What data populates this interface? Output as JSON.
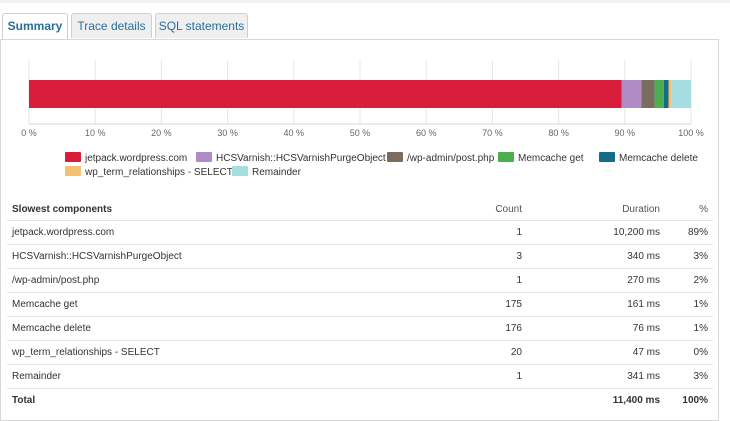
{
  "tabs": [
    {
      "label": "Summary",
      "active": true
    },
    {
      "label": "Trace details",
      "active": false
    },
    {
      "label": "SQL statements",
      "active": false
    }
  ],
  "chart_data": {
    "type": "bar",
    "orientation": "horizontal",
    "stacked": true,
    "xlim": [
      0,
      100
    ],
    "x_ticks": [
      "0 %",
      "10 %",
      "20 %",
      "30 %",
      "40 %",
      "50 %",
      "60 %",
      "70 %",
      "80 %",
      "90 %",
      "100 %"
    ],
    "grid": true,
    "legend_position": "bottom",
    "series": [
      {
        "name": "jetpack.wordpress.com",
        "value": 89.5,
        "color": "#d81e3b"
      },
      {
        "name": "HCSVarnish::HCSVarnishPurgeObject",
        "value": 3,
        "color": "#b08bc6"
      },
      {
        "name": "/wp-admin/post.php",
        "value": 2,
        "color": "#7a6c5e"
      },
      {
        "name": "Memcache get",
        "value": 1.4,
        "color": "#4cae4f"
      },
      {
        "name": "Memcache delete",
        "value": 0.7,
        "color": "#146c89"
      },
      {
        "name": "wp_term_relationships - SELECT",
        "value": 0.4,
        "color": "#f4bf70"
      },
      {
        "name": "Remainder",
        "value": 3,
        "color": "#a6dde1"
      }
    ]
  },
  "table": {
    "headers": {
      "name": "Slowest components",
      "count": "Count",
      "duration": "Duration",
      "pct": "%"
    },
    "rows": [
      {
        "name": "jetpack.wordpress.com",
        "count": "1",
        "duration": "10,200 ms",
        "pct": "89%"
      },
      {
        "name": "HCSVarnish::HCSVarnishPurgeObject",
        "count": "3",
        "duration": "340 ms",
        "pct": "3%"
      },
      {
        "name": "/wp-admin/post.php",
        "count": "1",
        "duration": "270 ms",
        "pct": "2%"
      },
      {
        "name": "Memcache get",
        "count": "175",
        "duration": "161 ms",
        "pct": "1%"
      },
      {
        "name": "Memcache delete",
        "count": "176",
        "duration": "76 ms",
        "pct": "1%"
      },
      {
        "name": "wp_term_relationships - SELECT",
        "count": "20",
        "duration": "47 ms",
        "pct": "0%"
      },
      {
        "name": "Remainder",
        "count": "1",
        "duration": "341 ms",
        "pct": "3%"
      }
    ],
    "total": {
      "name": "Total",
      "count": "",
      "duration": "11,400 ms",
      "pct": "100%"
    }
  }
}
